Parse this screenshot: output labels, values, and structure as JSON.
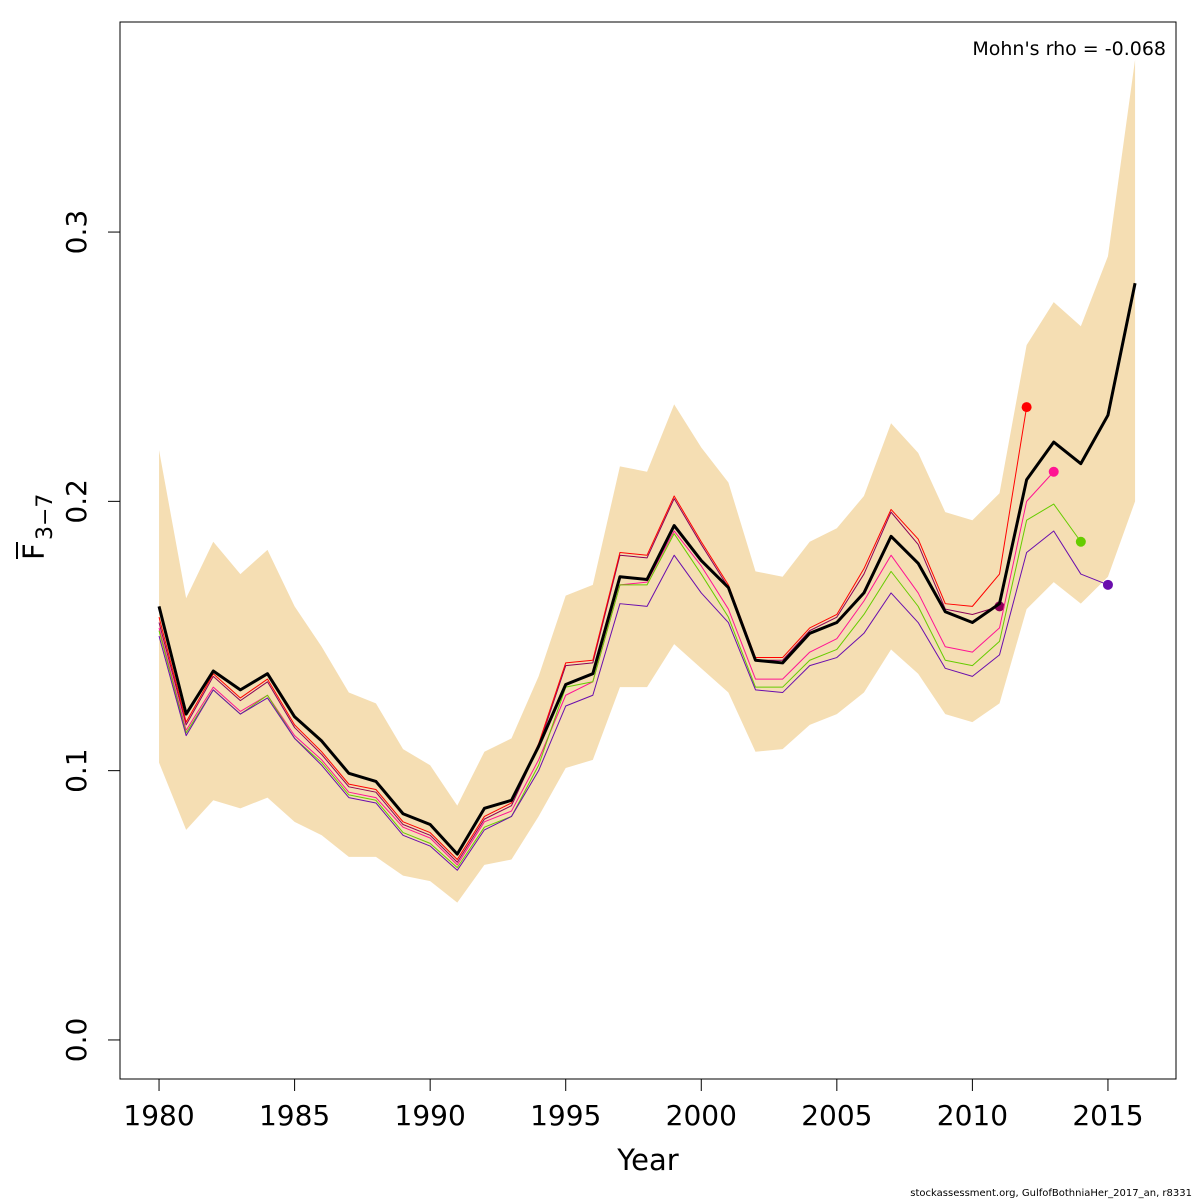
{
  "chart_data": {
    "type": "line",
    "annotation": "Mohn's rho = -0.068",
    "xlabel": "Year",
    "ylabel": "F",
    "ylabel_subscript": "3−7",
    "footer": "stockassessment.org, GulfofBothniaHer_2017_an, r8331",
    "xlim": [
      1978.56,
      2017.51
    ],
    "ylim": [
      -0.0145,
      0.378
    ],
    "xticks": [
      1980,
      1985,
      1990,
      1995,
      2000,
      2005,
      2010,
      2015
    ],
    "yticks": [
      {
        "value": 0,
        "label": "0.0"
      },
      0.1,
      0.2,
      0.3
    ],
    "x": [
      1980,
      1981,
      1982,
      1983,
      1984,
      1985,
      1986,
      1987,
      1988,
      1989,
      1990,
      1991,
      1992,
      1993,
      1994,
      1995,
      1996,
      1997,
      1998,
      1999,
      2000,
      2001,
      2002,
      2003,
      2004,
      2005,
      2006,
      2007,
      2008,
      2009,
      2010,
      2011,
      2012,
      2013,
      2014,
      2015,
      2016
    ],
    "band": {
      "color": "#f5deb3",
      "upper": [
        0.219,
        0.164,
        0.185,
        0.173,
        0.182,
        0.161,
        0.146,
        0.129,
        0.125,
        0.108,
        0.102,
        0.087,
        0.107,
        0.112,
        0.135,
        0.165,
        0.169,
        0.213,
        0.211,
        0.236,
        0.22,
        0.207,
        0.174,
        0.172,
        0.185,
        0.19,
        0.202,
        0.229,
        0.218,
        0.196,
        0.193,
        0.203,
        0.258,
        0.274,
        0.265,
        0.291,
        0.364
      ],
      "lower": [
        0.103,
        0.078,
        0.089,
        0.086,
        0.09,
        0.081,
        0.076,
        0.068,
        0.068,
        0.061,
        0.059,
        0.051,
        0.065,
        0.067,
        0.083,
        0.101,
        0.104,
        0.131,
        0.131,
        0.147,
        0.138,
        0.129,
        0.107,
        0.108,
        0.117,
        0.121,
        0.129,
        0.145,
        0.136,
        0.121,
        0.118,
        0.125,
        0.16,
        0.17,
        0.162,
        0.172,
        0.2
      ]
    },
    "series": [
      {
        "color": "#8b0057",
        "width": 1,
        "values": [
          0.155,
          0.117,
          0.135,
          0.126,
          0.133,
          0.116,
          0.106,
          0.094,
          0.092,
          0.08,
          0.076,
          0.066,
          0.082,
          0.087,
          0.109,
          0.139,
          0.14,
          0.18,
          0.179,
          0.201,
          0.184,
          0.168,
          0.141,
          0.141,
          0.152,
          0.157,
          0.173,
          0.196,
          0.184,
          0.16,
          0.158,
          0.161,
          null,
          null,
          null,
          null,
          null
        ],
        "endpoint": true
      },
      {
        "color": "#ff0000",
        "width": 1,
        "values": [
          0.157,
          0.118,
          0.136,
          0.127,
          0.134,
          0.117,
          0.107,
          0.095,
          0.093,
          0.081,
          0.077,
          0.067,
          0.083,
          0.088,
          0.11,
          0.14,
          0.141,
          0.181,
          0.18,
          0.202,
          0.185,
          0.169,
          0.142,
          0.142,
          0.153,
          0.158,
          0.175,
          0.197,
          0.186,
          0.162,
          0.161,
          0.173,
          0.235,
          null,
          null,
          null,
          null
        ],
        "endpoint": true
      },
      {
        "color": "#ff1493",
        "width": 1,
        "values": [
          0.153,
          0.115,
          0.131,
          0.122,
          0.128,
          0.113,
          0.104,
          0.092,
          0.09,
          0.079,
          0.075,
          0.065,
          0.081,
          0.085,
          0.104,
          0.128,
          0.133,
          0.169,
          0.17,
          0.189,
          0.176,
          0.16,
          0.134,
          0.134,
          0.144,
          0.149,
          0.163,
          0.18,
          0.166,
          0.146,
          0.144,
          0.153,
          0.2,
          0.211,
          null,
          null,
          null
        ],
        "endpoint": true
      },
      {
        "color": "#66cc00",
        "width": 1,
        "values": [
          0.152,
          0.114,
          0.13,
          0.121,
          0.128,
          0.112,
          0.103,
          0.091,
          0.089,
          0.077,
          0.073,
          0.064,
          0.079,
          0.083,
          0.102,
          0.131,
          0.133,
          0.169,
          0.169,
          0.188,
          0.173,
          0.157,
          0.131,
          0.131,
          0.141,
          0.145,
          0.158,
          0.174,
          0.161,
          0.141,
          0.139,
          0.148,
          0.193,
          0.199,
          0.185,
          null,
          null
        ],
        "endpoint": true
      },
      {
        "color": "#6a0dad",
        "width": 1,
        "values": [
          0.15,
          0.113,
          0.13,
          0.121,
          0.127,
          0.112,
          0.102,
          0.09,
          0.088,
          0.076,
          0.072,
          0.063,
          0.078,
          0.083,
          0.1,
          0.124,
          0.128,
          0.162,
          0.161,
          0.18,
          0.166,
          0.155,
          0.13,
          0.129,
          0.139,
          0.142,
          0.151,
          0.166,
          0.155,
          0.138,
          0.135,
          0.143,
          0.181,
          0.189,
          0.173,
          0.169,
          null
        ],
        "endpoint": true
      },
      {
        "color": "#000000",
        "width": 3,
        "values": [
          0.161,
          0.121,
          0.137,
          0.13,
          0.136,
          0.12,
          0.111,
          0.099,
          0.096,
          0.084,
          0.08,
          0.069,
          0.086,
          0.089,
          0.109,
          0.132,
          0.136,
          0.172,
          0.171,
          0.191,
          0.178,
          0.168,
          0.141,
          0.14,
          0.151,
          0.155,
          0.166,
          0.187,
          0.177,
          0.159,
          0.155,
          0.162,
          0.208,
          0.222,
          0.214,
          0.232,
          0.281
        ],
        "endpoint": false
      }
    ]
  }
}
